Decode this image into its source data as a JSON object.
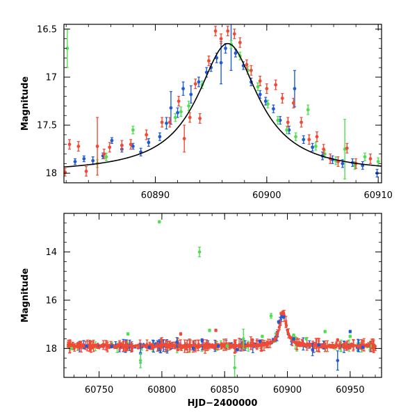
{
  "colors": {
    "blue": "#1f5bd8",
    "green": "#4ee04e",
    "red": "#f04a35",
    "axis": "#000000",
    "model": "#000000"
  },
  "chart_data": [
    {
      "type": "scatter",
      "title": "",
      "xlabel": "",
      "ylabel": "Magnitude",
      "xlim": [
        60881.8,
        60910.3
      ],
      "ylim": [
        18.1,
        16.45
      ],
      "y_inverted": true,
      "x_ticks": [
        60890,
        60900,
        60910
      ],
      "x_tick_labels": [
        "60890",
        "60900",
        "60910"
      ],
      "y_ticks": [
        16.5,
        17,
        17.5,
        18
      ],
      "y_tick_labels": [
        "16.5",
        "17",
        "17.5",
        "18"
      ],
      "model_curve": {
        "type": "lorentzian",
        "peak_x": 60896.5,
        "peak_mag": 16.65,
        "base_mag": 18.0,
        "half_width_days": 3.3
      },
      "series": [
        {
          "name": "blue",
          "color": "blue",
          "points": [
            [
              60882.8,
              17.88,
              0.03
            ],
            [
              60883.6,
              17.85,
              0.03
            ],
            [
              60884.4,
              17.87,
              0.04
            ],
            [
              60885.3,
              17.82,
              0.03
            ],
            [
              60886.1,
              17.66,
              0.03
            ],
            [
              60887.0,
              17.75,
              0.03
            ],
            [
              60888.0,
              17.72,
              0.03
            ],
            [
              60888.7,
              17.78,
              0.04
            ],
            [
              60889.4,
              17.68,
              0.04
            ],
            [
              60890.4,
              17.62,
              0.04
            ],
            [
              60891.0,
              17.48,
              0.06
            ],
            [
              60891.4,
              17.32,
              0.17
            ],
            [
              60892.0,
              17.37,
              0.05
            ],
            [
              60892.5,
              17.12,
              0.07
            ],
            [
              60893.2,
              17.18,
              0.09
            ],
            [
              60893.9,
              17.05,
              0.05
            ],
            [
              60894.6,
              16.95,
              0.05
            ],
            [
              60895.0,
              16.9,
              0.04
            ],
            [
              60895.5,
              16.8,
              0.05
            ],
            [
              60895.9,
              16.85,
              0.22
            ],
            [
              60896.3,
              16.7,
              0.05
            ],
            [
              60896.8,
              16.66,
              0.27
            ],
            [
              60897.2,
              16.75,
              0.04
            ],
            [
              60897.9,
              16.88,
              0.04
            ],
            [
              60898.6,
              17.05,
              0.04
            ],
            [
              60899.4,
              17.18,
              0.04
            ],
            [
              60899.9,
              17.25,
              0.04
            ],
            [
              60900.6,
              17.33,
              0.04
            ],
            [
              60901.2,
              17.45,
              0.04
            ],
            [
              60902.0,
              17.55,
              0.04
            ],
            [
              60902.5,
              17.12,
              0.19
            ],
            [
              60903.3,
              17.65,
              0.04
            ],
            [
              60904.1,
              17.73,
              0.04
            ],
            [
              60905.0,
              17.82,
              0.04
            ],
            [
              60905.9,
              17.86,
              0.04
            ],
            [
              60906.8,
              17.9,
              0.04
            ],
            [
              60907.7,
              17.89,
              0.04
            ],
            [
              60908.6,
              17.92,
              0.04
            ],
            [
              60909.9,
              18.0,
              0.04
            ]
          ]
        },
        {
          "name": "green",
          "color": "green",
          "points": [
            [
              60882.1,
              16.7,
              0.2
            ],
            [
              60884.8,
              17.9,
              0.04
            ],
            [
              60885.6,
              17.83,
              0.04
            ],
            [
              60888.0,
              17.55,
              0.04
            ],
            [
              60891.8,
              17.42,
              0.04
            ],
            [
              60892.3,
              17.36,
              0.05
            ],
            [
              60893.0,
              17.3,
              0.05
            ],
            [
              60894.2,
              17.08,
              0.04
            ],
            [
              60896.8,
              16.66,
              0.04
            ],
            [
              60897.6,
              16.78,
              0.04
            ],
            [
              60898.3,
              16.93,
              0.04
            ],
            [
              60899.2,
              17.1,
              0.04
            ],
            [
              60900.1,
              17.28,
              0.04
            ],
            [
              60901.0,
              17.45,
              0.04
            ],
            [
              60901.8,
              17.55,
              0.04
            ],
            [
              60902.6,
              17.62,
              0.04
            ],
            [
              60903.7,
              17.34,
              0.05
            ],
            [
              60904.4,
              17.72,
              0.04
            ],
            [
              60905.2,
              17.8,
              0.04
            ],
            [
              60906.2,
              17.87,
              0.04
            ],
            [
              60907.0,
              17.75,
              0.31
            ],
            [
              60907.9,
              17.92,
              0.04
            ],
            [
              60908.8,
              17.83,
              0.04
            ],
            [
              60910.0,
              17.88,
              0.04
            ]
          ]
        },
        {
          "name": "red",
          "color": "red",
          "points": [
            [
              60881.9,
              17.99,
              0.04
            ],
            [
              60882.3,
              17.7,
              0.05
            ],
            [
              60883.1,
              17.72,
              0.05
            ],
            [
              60883.8,
              17.98,
              0.05
            ],
            [
              60884.8,
              17.72,
              0.3
            ],
            [
              60885.4,
              17.8,
              0.05
            ],
            [
              60885.9,
              17.73,
              0.05
            ],
            [
              60887.0,
              17.71,
              0.05
            ],
            [
              60887.8,
              17.7,
              0.05
            ],
            [
              60889.2,
              17.6,
              0.05
            ],
            [
              60890.6,
              17.47,
              0.05
            ],
            [
              60891.3,
              17.47,
              0.05
            ],
            [
              60892.1,
              17.25,
              0.05
            ],
            [
              60892.6,
              17.64,
              0.14
            ],
            [
              60893.1,
              17.42,
              0.05
            ],
            [
              60893.6,
              17.07,
              0.05
            ],
            [
              60894.0,
              17.43,
              0.05
            ],
            [
              60894.8,
              16.83,
              0.05
            ],
            [
              60895.4,
              16.52,
              0.05
            ],
            [
              60895.9,
              16.6,
              0.05
            ],
            [
              60896.5,
              16.52,
              0.05
            ],
            [
              60897.1,
              16.55,
              0.05
            ],
            [
              60897.6,
              16.64,
              0.05
            ],
            [
              60898.2,
              16.87,
              0.05
            ],
            [
              60898.6,
              16.93,
              0.05
            ],
            [
              60899.4,
              17.04,
              0.05
            ],
            [
              60900.0,
              17.12,
              0.05
            ],
            [
              60900.8,
              17.08,
              0.05
            ],
            [
              60901.4,
              17.22,
              0.05
            ],
            [
              60901.9,
              17.47,
              0.05
            ],
            [
              60902.4,
              17.27,
              0.05
            ],
            [
              60903.1,
              17.47,
              0.05
            ],
            [
              60903.8,
              17.65,
              0.05
            ],
            [
              60904.5,
              17.62,
              0.05
            ],
            [
              60905.1,
              17.75,
              0.05
            ],
            [
              60905.7,
              17.85,
              0.05
            ],
            [
              60906.4,
              17.88,
              0.05
            ],
            [
              60907.2,
              17.74,
              0.05
            ],
            [
              60908.0,
              17.9,
              0.05
            ],
            [
              60909.3,
              17.85,
              0.05
            ]
          ]
        }
      ]
    },
    {
      "type": "scatter",
      "title": "",
      "xlabel": "HJD−2400000",
      "ylabel": "Magnitude",
      "xlim": [
        60722,
        60975
      ],
      "ylim": [
        19.2,
        12.4
      ],
      "y_inverted": true,
      "x_ticks": [
        60750,
        60800,
        60850,
        60900,
        60950
      ],
      "x_tick_labels": [
        "60750",
        "60800",
        "60850",
        "60900",
        "60950"
      ],
      "y_ticks": [
        14,
        16,
        18
      ],
      "y_tick_labels": [
        "14",
        "16",
        "18"
      ],
      "baseline_mag": 17.9,
      "outburst": {
        "peak_x": 60896.5,
        "peak_mag": 16.5,
        "half_width_days": 3.3
      },
      "series": [
        {
          "name": "blue",
          "color": "blue",
          "points": [
            [
              60740,
              17.9,
              0.05
            ],
            [
              60760,
              17.92,
              0.05
            ],
            [
              60783,
              18.2,
              0.4
            ],
            [
              60790,
              17.95,
              0.05
            ],
            [
              60812,
              17.75,
              0.2
            ],
            [
              60825,
              18.0,
              0.05
            ],
            [
              60832,
              17.65,
              0.05
            ],
            [
              60845,
              17.9,
              0.05
            ],
            [
              60860,
              18.05,
              0.05
            ],
            [
              60878,
              17.7,
              0.05
            ],
            [
              60893,
              16.9,
              0.05
            ],
            [
              60897,
              16.7,
              0.05
            ],
            [
              60905,
              17.6,
              0.05
            ],
            [
              60920,
              18.05,
              0.25
            ],
            [
              60925,
              17.85,
              0.05
            ],
            [
              60940,
              18.5,
              0.4
            ],
            [
              60950,
              17.3,
              0.05
            ],
            [
              60960,
              17.95,
              0.05
            ]
          ]
        },
        {
          "name": "green",
          "color": "green",
          "points": [
            [
              60728,
              18.0,
              0.05
            ],
            [
              60773,
              17.4,
              0.05
            ],
            [
              60783,
              18.5,
              0.3
            ],
            [
              60798,
              12.75,
              0.05
            ],
            [
              60830,
              14.0,
              0.2
            ],
            [
              60838,
              17.25,
              0.05
            ],
            [
              60852,
              17.9,
              0.05
            ],
            [
              60858,
              18.8,
              0.5
            ],
            [
              60865,
              17.6,
              0.4
            ],
            [
              60880,
              17.5,
              0.05
            ],
            [
              60887,
              16.65,
              0.1
            ],
            [
              60905,
              17.45,
              0.05
            ],
            [
              60915,
              17.6,
              0.05
            ],
            [
              60930,
              17.3,
              0.05
            ],
            [
              60950,
              17.5,
              0.05
            ],
            [
              60966,
              17.9,
              0.05
            ]
          ]
        },
        {
          "name": "red",
          "color": "red",
          "points": [
            [
              60735,
              17.9,
              0.05
            ],
            [
              60765,
              17.85,
              0.05
            ],
            [
              60800,
              17.7,
              0.15
            ],
            [
              60815,
              17.4,
              0.05
            ],
            [
              60843,
              17.25,
              0.05
            ],
            [
              60858,
              17.95,
              0.25
            ],
            [
              60872,
              17.65,
              0.05
            ],
            [
              60895,
              16.55,
              0.05
            ],
            [
              60897,
              16.55,
              0.05
            ],
            [
              60910,
              17.8,
              0.05
            ],
            [
              60940,
              17.65,
              0.05
            ],
            [
              60965,
              17.9,
              0.05
            ]
          ]
        }
      ]
    }
  ]
}
